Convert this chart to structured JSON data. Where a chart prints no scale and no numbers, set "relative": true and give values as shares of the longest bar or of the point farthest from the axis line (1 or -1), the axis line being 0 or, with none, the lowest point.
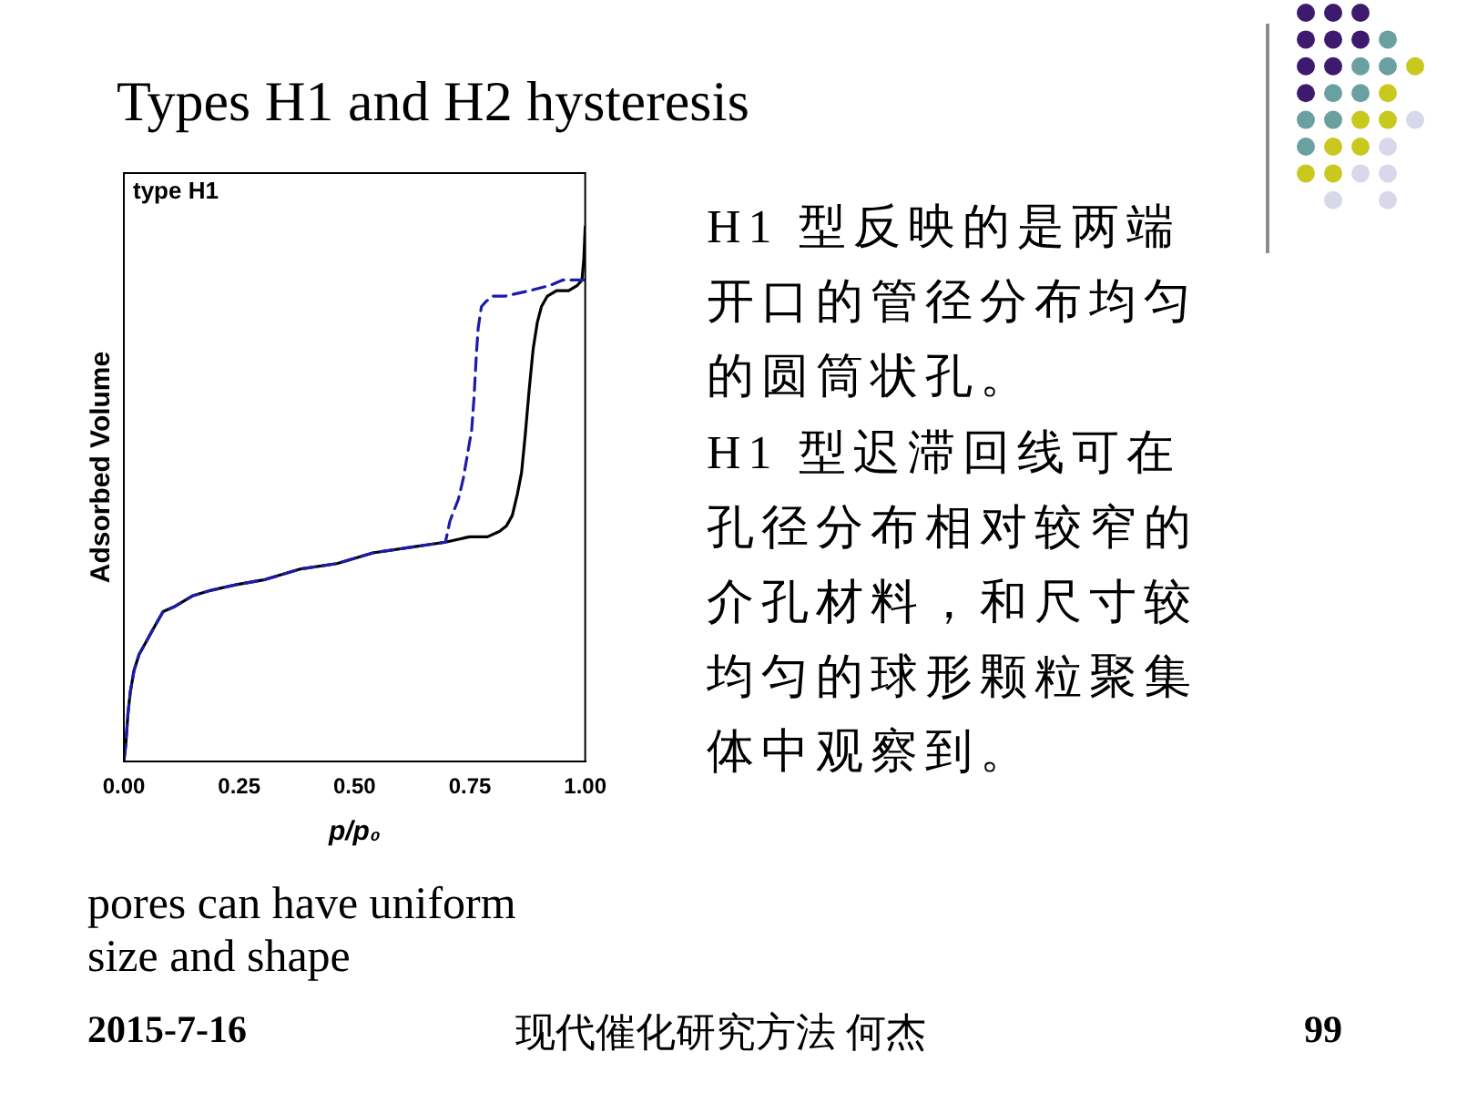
{
  "chart_data": {
    "type": "line",
    "title": "Types H1 and H2 hysteresis",
    "xlabel": "p/p₀",
    "ylabel": "Adsorbed Volume",
    "relative": true,
    "xlim": [
      0,
      1
    ],
    "xticks": [
      {
        "value": 0,
        "label": "0.00"
      },
      {
        "value": 0.25,
        "label": "0.25"
      },
      {
        "value": 0.5,
        "label": "0.50"
      },
      {
        "value": 0.75,
        "label": "0.75"
      },
      {
        "value": 1,
        "label": "1.00"
      }
    ],
    "line_style": "solid",
    "series": [
      {
        "color": "#000000",
        "x": [
          0,
          0.004,
          0.009,
          0.014,
          0.022,
          0.033,
          0.046,
          0.065,
          0.085,
          0.111,
          0.15,
          0.189,
          0.241,
          0.306,
          0.384,
          0.462,
          0.54,
          0.618,
          0.697,
          0.749,
          0.788,
          0.814,
          0.829,
          0.842,
          0.853,
          0.862,
          0.87,
          0.878,
          0.887,
          0.896,
          0.905,
          0.918,
          0.938,
          0.964,
          0.983,
          0.993,
          0.997,
          1
        ],
        "values": [
          0,
          0.03,
          0.09,
          0.13,
          0.17,
          0.2,
          0.22,
          0.25,
          0.28,
          0.29,
          0.31,
          0.32,
          0.33,
          0.34,
          0.36,
          0.37,
          0.39,
          0.4,
          0.41,
          0.42,
          0.42,
          0.43,
          0.44,
          0.46,
          0.5,
          0.54,
          0.61,
          0.69,
          0.77,
          0.82,
          0.85,
          0.87,
          0.88,
          0.88,
          0.89,
          0.9,
          0.94,
          1
        ]
      },
      {
        "color": "#1c1caa",
        "line_style": "dashed",
        "x": [
          0.997,
          0.983,
          0.951,
          0.924,
          0.879,
          0.827,
          0.801,
          0.785,
          0.775,
          0.768,
          0.764,
          0.759,
          0.754,
          0.746,
          0.736,
          0.725,
          0.716,
          0.707,
          0.697,
          0.618,
          0.54,
          0.462,
          0.384,
          0.306,
          0.241,
          0.189,
          0.15,
          0.111,
          0.085,
          0.065,
          0.046,
          0.033,
          0.022,
          0.014,
          0.009,
          0.004,
          0
        ],
        "values": [
          0.9,
          0.9,
          0.9,
          0.89,
          0.88,
          0.87,
          0.87,
          0.86,
          0.85,
          0.81,
          0.76,
          0.68,
          0.62,
          0.58,
          0.53,
          0.49,
          0.47,
          0.45,
          0.41,
          0.4,
          0.39,
          0.37,
          0.36,
          0.34,
          0.33,
          0.32,
          0.31,
          0.29,
          0.28,
          0.25,
          0.22,
          0.2,
          0.17,
          0.13,
          0.09,
          0.03,
          0
        ]
      }
    ],
    "annotations": [
      "type H1",
      "H1 型反映的是两端开口的管径分布均匀的圆筒状孔。",
      "H1 型迟滞回线可在孔径分布相对较窄的介孔材料，和尺寸较均匀的球形颗粒聚集体中观察到。",
      "pores can have uniform size and shape",
      "2015-7-16",
      "现代催化研究方法 何杰",
      "99"
    ]
  }
}
